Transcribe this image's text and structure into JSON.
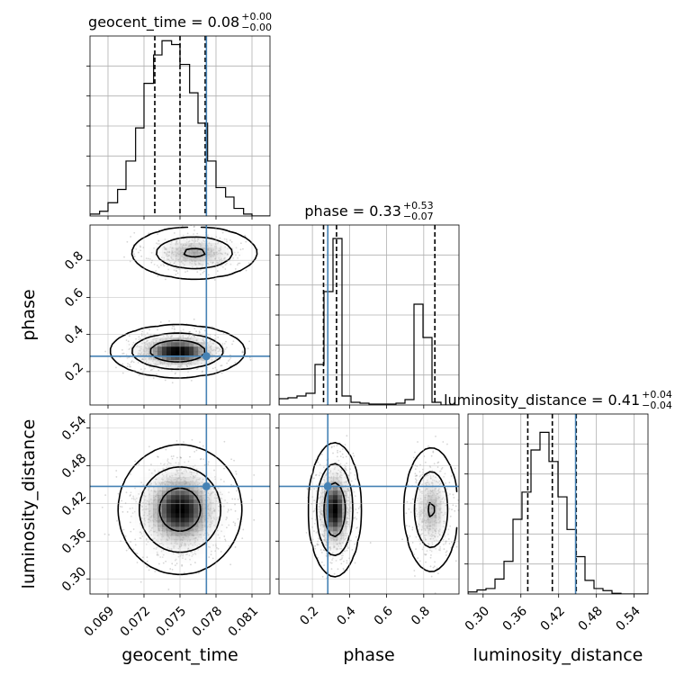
{
  "chart_data": {
    "type": "corner",
    "params": [
      "geocent_time",
      "phase",
      "luminosity_distance"
    ],
    "truths": [
      0.0772,
      0.283,
      0.447
    ],
    "colors": {
      "truth": "#4682b4",
      "line": "#000000",
      "grid": "#b0b0b0",
      "points": "#888888"
    },
    "grid": true,
    "axes": {
      "geocent_time": {
        "range": [
          0.0675,
          0.0825
        ],
        "ticks": [
          0.069,
          0.072,
          0.075,
          0.078,
          0.081
        ],
        "tick_labels": [
          "0.069",
          "0.072",
          "0.075",
          "0.078",
          "0.081"
        ],
        "xlabel": "geocent_time"
      },
      "phase": {
        "range": [
          0.02,
          0.99
        ],
        "ticks": [
          0.2,
          0.4,
          0.6,
          0.8
        ],
        "tick_labels": [
          "0.2",
          "0.4",
          "0.6",
          "0.8"
        ],
        "xlabel": "phase",
        "ylabel": "phase"
      },
      "luminosity_distance": {
        "range": [
          0.276,
          0.562
        ],
        "ticks": [
          0.3,
          0.36,
          0.42,
          0.48,
          0.54
        ],
        "tick_labels": [
          "0.30",
          "0.36",
          "0.42",
          "0.48",
          "0.54"
        ],
        "xlabel": "luminosity_distance",
        "ylabel": "luminosity_distance"
      }
    },
    "titles": [
      {
        "param": "geocent_time",
        "label": "geocent_time = 0.08",
        "sup": "+0.00",
        "sub": "−0.00"
      },
      {
        "param": "phase",
        "label": "phase = 0.33",
        "sup": "+0.53",
        "sub": "−0.07"
      },
      {
        "param": "luminosity_distance",
        "label": "luminosity_distance = 0.41",
        "sup": "+0.04",
        "sub": "−0.04"
      }
    ],
    "histograms": [
      {
        "param": "geocent_time",
        "bin_edges": [
          0.0675,
          0.0683,
          0.069,
          0.0698,
          0.0705,
          0.0713,
          0.072,
          0.0728,
          0.0735,
          0.0743,
          0.075,
          0.0758,
          0.0765,
          0.0773,
          0.078,
          0.0788,
          0.0795,
          0.0803,
          0.081,
          0.0818,
          0.0825
        ],
        "counts": [
          2,
          5,
          14,
          28,
          58,
          93,
          140,
          170,
          185,
          181,
          160,
          130,
          98,
          58,
          30,
          20,
          8,
          2,
          0,
          0
        ],
        "quantiles": [
          0.0729,
          0.075,
          0.0771
        ],
        "ymax": 190
      },
      {
        "param": "phase",
        "bin_edges": [
          0.02,
          0.0685,
          0.117,
          0.1655,
          0.214,
          0.2625,
          0.311,
          0.3595,
          0.408,
          0.4565,
          0.505,
          0.5535,
          0.602,
          0.6505,
          0.699,
          0.7475,
          0.796,
          0.8445,
          0.893,
          0.9415,
          0.99
        ],
        "counts": [
          7,
          8,
          10,
          13,
          45,
          126,
          185,
          10,
          3,
          2,
          1,
          1,
          1,
          2,
          6,
          112,
          75,
          3,
          0,
          0
        ],
        "quantiles": [
          0.26,
          0.33,
          0.86
        ],
        "ymax": 200
      },
      {
        "param": "luminosity_distance",
        "bin_edges": [
          0.276,
          0.2903,
          0.3046,
          0.3189,
          0.3332,
          0.3475,
          0.3618,
          0.3761,
          0.3904,
          0.4047,
          0.419,
          0.4333,
          0.4476,
          0.4619,
          0.4762,
          0.4905,
          0.5048,
          0.5191,
          0.5334,
          0.5477,
          0.562
        ],
        "counts": [
          3,
          6,
          8,
          22,
          48,
          110,
          150,
          212,
          238,
          195,
          143,
          95,
          55,
          20,
          8,
          5,
          1,
          0,
          0,
          0
        ],
        "quantiles": [
          0.371,
          0.41,
          0.448
        ],
        "ymax": 265
      }
    ],
    "pairs": [
      {
        "x": "geocent_time",
        "y": "phase",
        "modes": [
          {
            "cx": 0.0762,
            "cy": 0.84,
            "sx": 0.0018,
            "sy": 0.048,
            "weight": 0.35
          },
          {
            "cx": 0.0748,
            "cy": 0.31,
            "sx": 0.0018,
            "sy": 0.045,
            "weight": 0.65
          }
        ]
      },
      {
        "x": "geocent_time",
        "y": "luminosity_distance",
        "modes": [
          {
            "cx": 0.075,
            "cy": 0.41,
            "sx": 0.0017,
            "sy": 0.034,
            "weight": 1.0
          }
        ]
      },
      {
        "x": "phase",
        "y": "luminosity_distance",
        "modes": [
          {
            "cx": 0.32,
            "cy": 0.41,
            "sx": 0.045,
            "sy": 0.034,
            "weight": 0.65
          },
          {
            "cx": 0.84,
            "cy": 0.41,
            "sx": 0.05,
            "sy": 0.034,
            "weight": 0.35
          }
        ]
      }
    ],
    "contour_levels": [
      0.39,
      0.86,
      0.99
    ],
    "show_points": true,
    "show_density": true
  }
}
